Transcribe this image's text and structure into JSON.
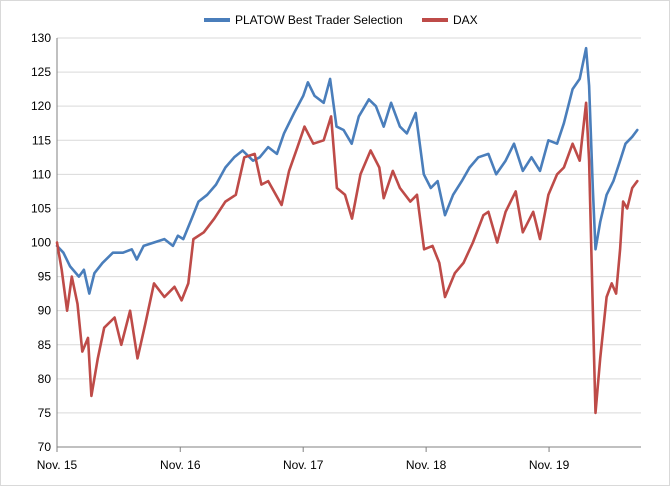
{
  "chart_data": {
    "type": "line",
    "title": "",
    "xlabel": "",
    "ylabel": "",
    "ylim": [
      70,
      130
    ],
    "y_ticks": [
      70,
      75,
      80,
      85,
      90,
      95,
      100,
      105,
      110,
      115,
      120,
      125,
      130
    ],
    "x_tick_labels": [
      "Nov. 15",
      "Nov. 16",
      "Nov. 17",
      "Nov. 18",
      "Nov. 19"
    ],
    "x_range_months": [
      "2015-11",
      "2020-07"
    ],
    "grid": {
      "horizontal": true,
      "vertical": false
    },
    "legend_position": "top-center",
    "series": [
      {
        "name": "PLATOW Best Trader Selection",
        "color": "#4a7ebb",
        "points": [
          [
            "2015-11-01",
            99.5
          ],
          [
            "2015-11-20",
            98.5
          ],
          [
            "2015-12-10",
            96.5
          ],
          [
            "2016-01-05",
            95.0
          ],
          [
            "2016-01-20",
            96.0
          ],
          [
            "2016-02-05",
            92.5
          ],
          [
            "2016-02-20",
            95.5
          ],
          [
            "2016-03-15",
            97.0
          ],
          [
            "2016-04-15",
            98.5
          ],
          [
            "2016-05-15",
            98.5
          ],
          [
            "2016-06-10",
            99.0
          ],
          [
            "2016-06-25",
            97.5
          ],
          [
            "2016-07-15",
            99.5
          ],
          [
            "2016-08-15",
            100.0
          ],
          [
            "2016-09-15",
            100.5
          ],
          [
            "2016-10-10",
            99.5
          ],
          [
            "2016-10-25",
            101.0
          ],
          [
            "2016-11-10",
            100.5
          ],
          [
            "2016-12-05",
            103.5
          ],
          [
            "2016-12-25",
            106.0
          ],
          [
            "2017-01-20",
            107.0
          ],
          [
            "2017-02-15",
            108.5
          ],
          [
            "2017-03-15",
            111.0
          ],
          [
            "2017-04-10",
            112.5
          ],
          [
            "2017-05-05",
            113.5
          ],
          [
            "2017-06-05",
            112.0
          ],
          [
            "2017-06-25",
            112.5
          ],
          [
            "2017-07-20",
            114.0
          ],
          [
            "2017-08-15",
            113.0
          ],
          [
            "2017-09-05",
            116.0
          ],
          [
            "2017-10-05",
            119.0
          ],
          [
            "2017-11-01",
            121.5
          ],
          [
            "2017-11-15",
            123.5
          ],
          [
            "2017-12-05",
            121.5
          ],
          [
            "2018-01-01",
            120.5
          ],
          [
            "2018-01-20",
            124.0
          ],
          [
            "2018-02-08",
            117.0
          ],
          [
            "2018-03-01",
            116.5
          ],
          [
            "2018-03-25",
            114.5
          ],
          [
            "2018-04-15",
            118.5
          ],
          [
            "2018-05-15",
            121.0
          ],
          [
            "2018-06-05",
            120.0
          ],
          [
            "2018-06-28",
            117.0
          ],
          [
            "2018-07-20",
            120.5
          ],
          [
            "2018-08-15",
            117.0
          ],
          [
            "2018-09-05",
            116.0
          ],
          [
            "2018-10-01",
            119.0
          ],
          [
            "2018-10-25",
            110.0
          ],
          [
            "2018-11-15",
            108.0
          ],
          [
            "2018-12-05",
            109.0
          ],
          [
            "2018-12-27",
            104.0
          ],
          [
            "2019-01-20",
            107.0
          ],
          [
            "2019-02-15",
            109.0
          ],
          [
            "2019-03-10",
            111.0
          ],
          [
            "2019-04-05",
            112.5
          ],
          [
            "2019-05-05",
            113.0
          ],
          [
            "2019-05-28",
            110.0
          ],
          [
            "2019-06-25",
            112.0
          ],
          [
            "2019-07-20",
            114.5
          ],
          [
            "2019-08-15",
            110.5
          ],
          [
            "2019-09-10",
            112.5
          ],
          [
            "2019-10-05",
            110.5
          ],
          [
            "2019-10-30",
            115.0
          ],
          [
            "2019-11-25",
            114.5
          ],
          [
            "2019-12-15",
            117.5
          ],
          [
            "2020-01-10",
            122.5
          ],
          [
            "2020-01-31",
            124.0
          ],
          [
            "2020-02-19",
            128.5
          ],
          [
            "2020-02-28",
            123.0
          ],
          [
            "2020-03-10",
            108.0
          ],
          [
            "2020-03-18",
            99.0
          ],
          [
            "2020-04-01",
            103.0
          ],
          [
            "2020-04-20",
            107.0
          ],
          [
            "2020-05-10",
            109.0
          ],
          [
            "2020-05-30",
            112.0
          ],
          [
            "2020-06-15",
            114.5
          ],
          [
            "2020-07-05",
            115.5
          ],
          [
            "2020-07-20",
            116.5
          ]
        ]
      },
      {
        "name": "DAX",
        "color": "#be4b48",
        "points": [
          [
            "2015-11-01",
            100.0
          ],
          [
            "2015-11-15",
            96.0
          ],
          [
            "2015-12-01",
            90.0
          ],
          [
            "2015-12-15",
            95.0
          ],
          [
            "2016-01-01",
            91.0
          ],
          [
            "2016-01-15",
            84.0
          ],
          [
            "2016-02-01",
            86.0
          ],
          [
            "2016-02-11",
            77.5
          ],
          [
            "2016-03-01",
            83.0
          ],
          [
            "2016-03-20",
            87.5
          ],
          [
            "2016-04-20",
            89.0
          ],
          [
            "2016-05-10",
            85.0
          ],
          [
            "2016-06-05",
            90.0
          ],
          [
            "2016-06-27",
            83.0
          ],
          [
            "2016-07-20",
            88.0
          ],
          [
            "2016-08-15",
            94.0
          ],
          [
            "2016-09-15",
            92.0
          ],
          [
            "2016-10-15",
            93.5
          ],
          [
            "2016-11-05",
            91.5
          ],
          [
            "2016-11-25",
            94.0
          ],
          [
            "2016-12-10",
            100.5
          ],
          [
            "2017-01-10",
            101.5
          ],
          [
            "2017-02-10",
            103.5
          ],
          [
            "2017-03-15",
            106.0
          ],
          [
            "2017-04-15",
            107.0
          ],
          [
            "2017-05-10",
            112.5
          ],
          [
            "2017-06-10",
            113.0
          ],
          [
            "2017-06-30",
            108.5
          ],
          [
            "2017-07-20",
            109.0
          ],
          [
            "2017-08-29",
            105.5
          ],
          [
            "2017-09-20",
            110.5
          ],
          [
            "2017-10-15",
            114.0
          ],
          [
            "2017-11-05",
            117.0
          ],
          [
            "2017-12-01",
            114.5
          ],
          [
            "2018-01-01",
            115.0
          ],
          [
            "2018-01-23",
            118.5
          ],
          [
            "2018-02-09",
            108.0
          ],
          [
            "2018-03-05",
            107.0
          ],
          [
            "2018-03-26",
            103.5
          ],
          [
            "2018-04-20",
            110.0
          ],
          [
            "2018-05-20",
            113.5
          ],
          [
            "2018-06-15",
            111.0
          ],
          [
            "2018-06-28",
            106.5
          ],
          [
            "2018-07-25",
            110.5
          ],
          [
            "2018-08-15",
            108.0
          ],
          [
            "2018-09-15",
            106.0
          ],
          [
            "2018-10-05",
            107.0
          ],
          [
            "2018-10-26",
            99.0
          ],
          [
            "2018-11-20",
            99.5
          ],
          [
            "2018-12-10",
            97.0
          ],
          [
            "2018-12-27",
            92.0
          ],
          [
            "2019-01-25",
            95.5
          ],
          [
            "2019-02-20",
            97.0
          ],
          [
            "2019-03-20",
            100.0
          ],
          [
            "2019-04-20",
            104.0
          ],
          [
            "2019-05-05",
            104.5
          ],
          [
            "2019-05-31",
            100.0
          ],
          [
            "2019-06-25",
            104.5
          ],
          [
            "2019-07-25",
            107.5
          ],
          [
            "2019-08-15",
            101.5
          ],
          [
            "2019-09-15",
            104.5
          ],
          [
            "2019-10-05",
            100.5
          ],
          [
            "2019-10-30",
            107.0
          ],
          [
            "2019-11-25",
            110.0
          ],
          [
            "2019-12-15",
            111.0
          ],
          [
            "2020-01-10",
            114.5
          ],
          [
            "2020-01-31",
            112.0
          ],
          [
            "2020-02-19",
            120.5
          ],
          [
            "2020-02-28",
            112.0
          ],
          [
            "2020-03-09",
            92.0
          ],
          [
            "2020-03-18",
            75.0
          ],
          [
            "2020-04-01",
            83.0
          ],
          [
            "2020-04-20",
            92.0
          ],
          [
            "2020-05-05",
            94.0
          ],
          [
            "2020-05-18",
            92.5
          ],
          [
            "2020-05-30",
            99.0
          ],
          [
            "2020-06-08",
            106.0
          ],
          [
            "2020-06-20",
            105.0
          ],
          [
            "2020-07-05",
            108.0
          ],
          [
            "2020-07-20",
            109.0
          ]
        ]
      }
    ]
  }
}
